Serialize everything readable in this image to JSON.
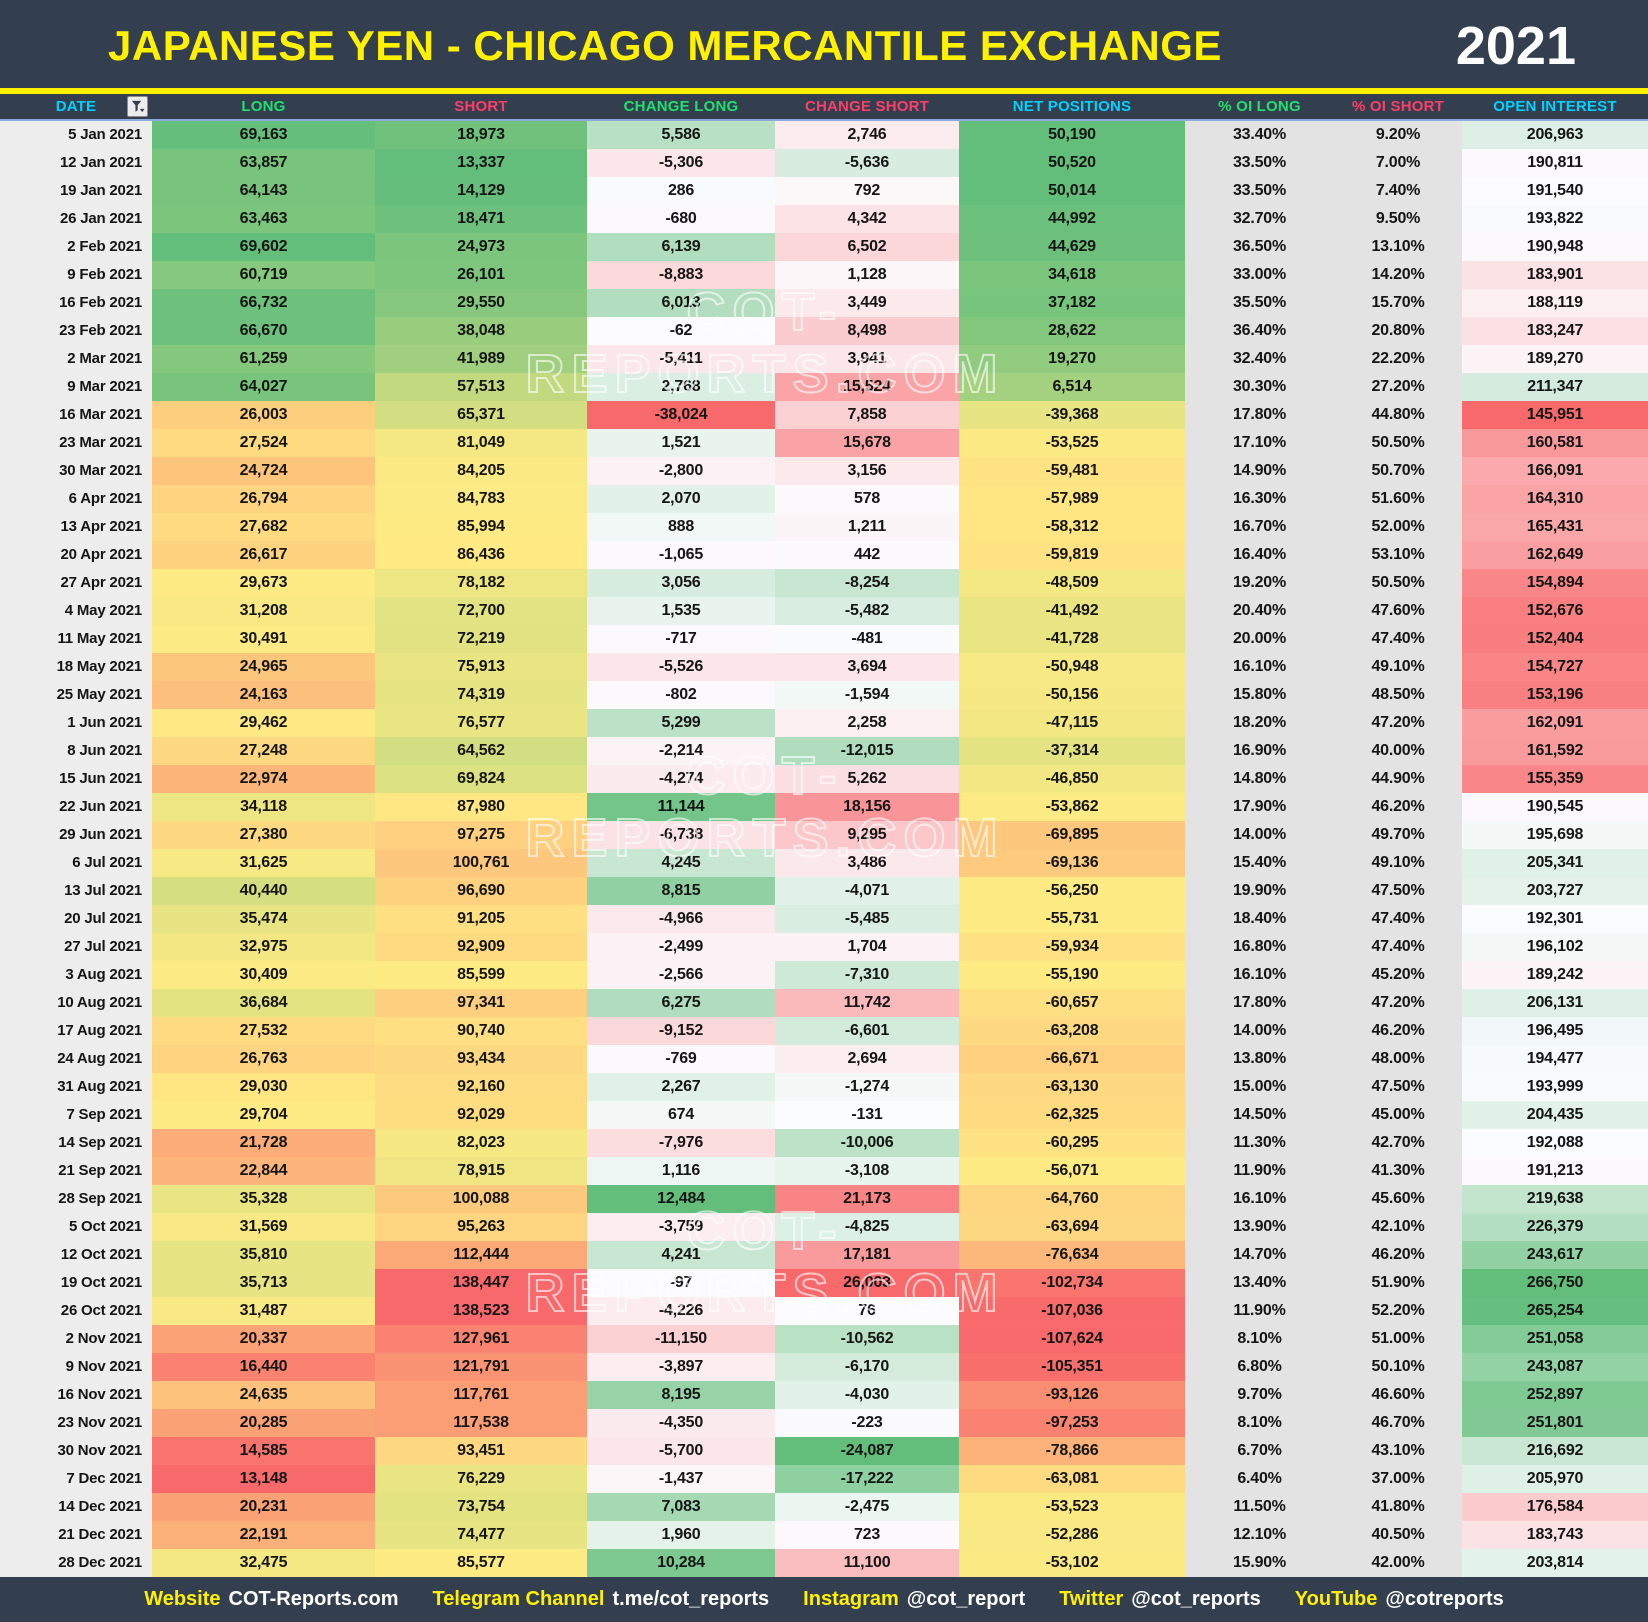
{
  "header": {
    "title": "JAPANESE YEN - CHICAGO MERCANTILE EXCHANGE",
    "year": "2021"
  },
  "watermark": {
    "text": "COT-REPORTS.COM"
  },
  "colors": {
    "topbar_bg": "#333E4F",
    "accent_yellow": "#FFF100",
    "cyan": "#00D2FF",
    "green": "#21E06E",
    "pink": "#FF3E68",
    "date_col_bg": "#EDEDED",
    "pct_col_bg": "#E3E3E3"
  },
  "heatmap": {
    "palette": {
      "red": "#F8696B",
      "yellow": "#FFEB84",
      "green": "#63BE7B",
      "white": "#FCFCFF"
    },
    "scales": {
      "long": {
        "stops": [
          "red",
          "yellow",
          "green"
        ],
        "min": 13148,
        "mid": 29688,
        "max": 69602
      },
      "short": {
        "stops": [
          "green",
          "yellow",
          "red"
        ],
        "min": 13337,
        "mid": 86215,
        "max": 138523
      },
      "change_long": {
        "stops": [
          "red",
          "white",
          "green"
        ],
        "min": -38024,
        "mid": 0,
        "max": 12484
      },
      "change_short": {
        "stops": [
          "green",
          "white",
          "red"
        ],
        "min": -24087,
        "mid": 0,
        "max": 26003
      },
      "net": {
        "stops": [
          "red",
          "yellow",
          "green"
        ],
        "min": -107624,
        "mid": -56160,
        "max": 50520
      },
      "open_interest": {
        "stops": [
          "red",
          "white",
          "green"
        ],
        "min": 145951,
        "mid": 191814,
        "max": 266750
      }
    }
  },
  "table": {
    "columns": [
      {
        "key": "date",
        "label": "DATE",
        "label_color": "#00D2FF",
        "scale": null
      },
      {
        "key": "long",
        "label": "LONG",
        "label_color": "#21E06E",
        "scale": "long"
      },
      {
        "key": "short",
        "label": "SHORT",
        "label_color": "#FF3E68",
        "scale": "short"
      },
      {
        "key": "change_long",
        "label": "CHANGE LONG",
        "label_color": "#21E06E",
        "scale": "change_long"
      },
      {
        "key": "change_short",
        "label": "CHANGE SHORT",
        "label_color": "#FF3E68",
        "scale": "change_short"
      },
      {
        "key": "net",
        "label": "NET POSITIONS",
        "label_color": "#00D2FF",
        "scale": "net"
      },
      {
        "key": "oi_long",
        "label": "% OI LONG",
        "label_color": "#21E06E",
        "scale": null
      },
      {
        "key": "oi_short",
        "label": "% OI SHORT",
        "label_color": "#FF3E68",
        "scale": null
      },
      {
        "key": "open_interest",
        "label": "OPEN INTEREST",
        "label_color": "#00D2FF",
        "scale": "open_interest"
      }
    ],
    "rows": [
      [
        "5 Jan 2021",
        "69,163",
        "18,973",
        "5,586",
        "2,746",
        "50,190",
        "33.40%",
        "9.20%",
        "206,963"
      ],
      [
        "12 Jan 2021",
        "63,857",
        "13,337",
        "-5,306",
        "-5,636",
        "50,520",
        "33.50%",
        "7.00%",
        "190,811"
      ],
      [
        "19 Jan 2021",
        "64,143",
        "14,129",
        "286",
        "792",
        "50,014",
        "33.50%",
        "7.40%",
        "191,540"
      ],
      [
        "26 Jan 2021",
        "63,463",
        "18,471",
        "-680",
        "4,342",
        "44,992",
        "32.70%",
        "9.50%",
        "193,822"
      ],
      [
        "2 Feb 2021",
        "69,602",
        "24,973",
        "6,139",
        "6,502",
        "44,629",
        "36.50%",
        "13.10%",
        "190,948"
      ],
      [
        "9 Feb 2021",
        "60,719",
        "26,101",
        "-8,883",
        "1,128",
        "34,618",
        "33.00%",
        "14.20%",
        "183,901"
      ],
      [
        "16 Feb 2021",
        "66,732",
        "29,550",
        "6,013",
        "3,449",
        "37,182",
        "35.50%",
        "15.70%",
        "188,119"
      ],
      [
        "23 Feb 2021",
        "66,670",
        "38,048",
        "-62",
        "8,498",
        "28,622",
        "36.40%",
        "20.80%",
        "183,247"
      ],
      [
        "2 Mar 2021",
        "61,259",
        "41,989",
        "-5,411",
        "3,941",
        "19,270",
        "32.40%",
        "22.20%",
        "189,270"
      ],
      [
        "9 Mar 2021",
        "64,027",
        "57,513",
        "2,768",
        "15,524",
        "6,514",
        "30.30%",
        "27.20%",
        "211,347"
      ],
      [
        "16 Mar 2021",
        "26,003",
        "65,371",
        "-38,024",
        "7,858",
        "-39,368",
        "17.80%",
        "44.80%",
        "145,951"
      ],
      [
        "23 Mar 2021",
        "27,524",
        "81,049",
        "1,521",
        "15,678",
        "-53,525",
        "17.10%",
        "50.50%",
        "160,581"
      ],
      [
        "30 Mar 2021",
        "24,724",
        "84,205",
        "-2,800",
        "3,156",
        "-59,481",
        "14.90%",
        "50.70%",
        "166,091"
      ],
      [
        "6 Apr 2021",
        "26,794",
        "84,783",
        "2,070",
        "578",
        "-57,989",
        "16.30%",
        "51.60%",
        "164,310"
      ],
      [
        "13 Apr 2021",
        "27,682",
        "85,994",
        "888",
        "1,211",
        "-58,312",
        "16.70%",
        "52.00%",
        "165,431"
      ],
      [
        "20 Apr 2021",
        "26,617",
        "86,436",
        "-1,065",
        "442",
        "-59,819",
        "16.40%",
        "53.10%",
        "162,649"
      ],
      [
        "27 Apr 2021",
        "29,673",
        "78,182",
        "3,056",
        "-8,254",
        "-48,509",
        "19.20%",
        "50.50%",
        "154,894"
      ],
      [
        "4 May 2021",
        "31,208",
        "72,700",
        "1,535",
        "-5,482",
        "-41,492",
        "20.40%",
        "47.60%",
        "152,676"
      ],
      [
        "11 May 2021",
        "30,491",
        "72,219",
        "-717",
        "-481",
        "-41,728",
        "20.00%",
        "47.40%",
        "152,404"
      ],
      [
        "18 May 2021",
        "24,965",
        "75,913",
        "-5,526",
        "3,694",
        "-50,948",
        "16.10%",
        "49.10%",
        "154,727"
      ],
      [
        "25 May 2021",
        "24,163",
        "74,319",
        "-802",
        "-1,594",
        "-50,156",
        "15.80%",
        "48.50%",
        "153,196"
      ],
      [
        "1 Jun 2021",
        "29,462",
        "76,577",
        "5,299",
        "2,258",
        "-47,115",
        "18.20%",
        "47.20%",
        "162,091"
      ],
      [
        "8 Jun 2021",
        "27,248",
        "64,562",
        "-2,214",
        "-12,015",
        "-37,314",
        "16.90%",
        "40.00%",
        "161,592"
      ],
      [
        "15 Jun 2021",
        "22,974",
        "69,824",
        "-4,274",
        "5,262",
        "-46,850",
        "14.80%",
        "44.90%",
        "155,359"
      ],
      [
        "22 Jun 2021",
        "34,118",
        "87,980",
        "11,144",
        "18,156",
        "-53,862",
        "17.90%",
        "46.20%",
        "190,545"
      ],
      [
        "29 Jun 2021",
        "27,380",
        "97,275",
        "-6,738",
        "9,295",
        "-69,895",
        "14.00%",
        "49.70%",
        "195,698"
      ],
      [
        "6 Jul 2021",
        "31,625",
        "100,761",
        "4,245",
        "3,486",
        "-69,136",
        "15.40%",
        "49.10%",
        "205,341"
      ],
      [
        "13 Jul 2021",
        "40,440",
        "96,690",
        "8,815",
        "-4,071",
        "-56,250",
        "19.90%",
        "47.50%",
        "203,727"
      ],
      [
        "20 Jul 2021",
        "35,474",
        "91,205",
        "-4,966",
        "-5,485",
        "-55,731",
        "18.40%",
        "47.40%",
        "192,301"
      ],
      [
        "27 Jul 2021",
        "32,975",
        "92,909",
        "-2,499",
        "1,704",
        "-59,934",
        "16.80%",
        "47.40%",
        "196,102"
      ],
      [
        "3 Aug 2021",
        "30,409",
        "85,599",
        "-2,566",
        "-7,310",
        "-55,190",
        "16.10%",
        "45.20%",
        "189,242"
      ],
      [
        "10 Aug 2021",
        "36,684",
        "97,341",
        "6,275",
        "11,742",
        "-60,657",
        "17.80%",
        "47.20%",
        "206,131"
      ],
      [
        "17 Aug 2021",
        "27,532",
        "90,740",
        "-9,152",
        "-6,601",
        "-63,208",
        "14.00%",
        "46.20%",
        "196,495"
      ],
      [
        "24 Aug 2021",
        "26,763",
        "93,434",
        "-769",
        "2,694",
        "-66,671",
        "13.80%",
        "48.00%",
        "194,477"
      ],
      [
        "31 Aug 2021",
        "29,030",
        "92,160",
        "2,267",
        "-1,274",
        "-63,130",
        "15.00%",
        "47.50%",
        "193,999"
      ],
      [
        "7 Sep 2021",
        "29,704",
        "92,029",
        "674",
        "-131",
        "-62,325",
        "14.50%",
        "45.00%",
        "204,435"
      ],
      [
        "14 Sep 2021",
        "21,728",
        "82,023",
        "-7,976",
        "-10,006",
        "-60,295",
        "11.30%",
        "42.70%",
        "192,088"
      ],
      [
        "21 Sep 2021",
        "22,844",
        "78,915",
        "1,116",
        "-3,108",
        "-56,071",
        "11.90%",
        "41.30%",
        "191,213"
      ],
      [
        "28 Sep 2021",
        "35,328",
        "100,088",
        "12,484",
        "21,173",
        "-64,760",
        "16.10%",
        "45.60%",
        "219,638"
      ],
      [
        "5 Oct 2021",
        "31,569",
        "95,263",
        "-3,759",
        "-4,825",
        "-63,694",
        "13.90%",
        "42.10%",
        "226,379"
      ],
      [
        "12 Oct 2021",
        "35,810",
        "112,444",
        "4,241",
        "17,181",
        "-76,634",
        "14.70%",
        "46.20%",
        "243,617"
      ],
      [
        "19 Oct 2021",
        "35,713",
        "138,447",
        "-97",
        "26,003",
        "-102,734",
        "13.40%",
        "51.90%",
        "266,750"
      ],
      [
        "26 Oct 2021",
        "31,487",
        "138,523",
        "-4,226",
        "76",
        "-107,036",
        "11.90%",
        "52.20%",
        "265,254"
      ],
      [
        "2 Nov 2021",
        "20,337",
        "127,961",
        "-11,150",
        "-10,562",
        "-107,624",
        "8.10%",
        "51.00%",
        "251,058"
      ],
      [
        "9 Nov 2021",
        "16,440",
        "121,791",
        "-3,897",
        "-6,170",
        "-105,351",
        "6.80%",
        "50.10%",
        "243,087"
      ],
      [
        "16 Nov 2021",
        "24,635",
        "117,761",
        "8,195",
        "-4,030",
        "-93,126",
        "9.70%",
        "46.60%",
        "252,897"
      ],
      [
        "23 Nov 2021",
        "20,285",
        "117,538",
        "-4,350",
        "-223",
        "-97,253",
        "8.10%",
        "46.70%",
        "251,801"
      ],
      [
        "30 Nov 2021",
        "14,585",
        "93,451",
        "-5,700",
        "-24,087",
        "-78,866",
        "6.70%",
        "43.10%",
        "216,692"
      ],
      [
        "7 Dec 2021",
        "13,148",
        "76,229",
        "-1,437",
        "-17,222",
        "-63,081",
        "6.40%",
        "37.00%",
        "205,970"
      ],
      [
        "14 Dec 2021",
        "20,231",
        "73,754",
        "7,083",
        "-2,475",
        "-53,523",
        "11.50%",
        "41.80%",
        "176,584"
      ],
      [
        "21 Dec 2021",
        "22,191",
        "74,477",
        "1,960",
        "723",
        "-52,286",
        "12.10%",
        "40.50%",
        "183,743"
      ],
      [
        "28 Dec 2021",
        "32,475",
        "85,577",
        "10,284",
        "11,100",
        "-53,102",
        "15.90%",
        "42.00%",
        "203,814"
      ]
    ]
  },
  "footer": {
    "items": [
      {
        "label": "Website",
        "value": "COT-Reports.com"
      },
      {
        "label": "Telegram Channel",
        "value": "t.me/cot_reports"
      },
      {
        "label": "Instagram",
        "value": "@cot_report"
      },
      {
        "label": "Twitter",
        "value": "@cot_reports"
      },
      {
        "label": "YouTube",
        "value": "@cotreports"
      }
    ]
  }
}
